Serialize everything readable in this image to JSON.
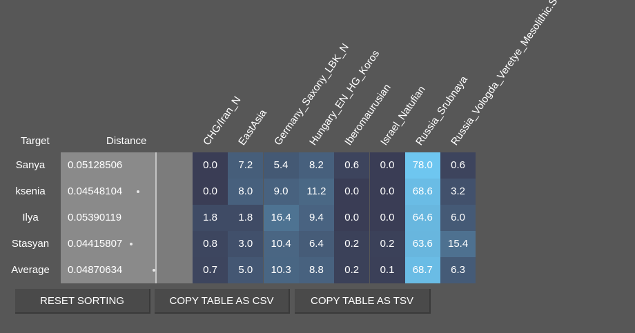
{
  "headers": {
    "target": "Target",
    "distance": "Distance"
  },
  "columns": [
    "CHG/Iran_N",
    "EastAsia",
    "Germany_Saxony_LBK_N",
    "Hungary_EN_HG_Koros",
    "Iberomaurusian",
    "Israel_Natufian",
    "Russia_Srubnaya",
    "Russia_Vologda_Veretye_Mesolithic.SG"
  ],
  "rows": [
    {
      "target": "Sanya",
      "distance": "0.05128506",
      "distance_value": 0.05128506,
      "values": [
        "0.0",
        "7.2",
        "5.4",
        "8.2",
        "0.6",
        "0.0",
        "78.0",
        "0.6"
      ]
    },
    {
      "target": "ksenia",
      "distance": "0.04548104",
      "distance_value": 0.04548104,
      "values": [
        "0.0",
        "8.0",
        "9.0",
        "11.2",
        "0.0",
        "0.0",
        "68.6",
        "3.2"
      ]
    },
    {
      "target": "Ilya",
      "distance": "0.05390119",
      "distance_value": 0.05390119,
      "values": [
        "1.8",
        "1.8",
        "16.4",
        "9.4",
        "0.0",
        "0.0",
        "64.6",
        "6.0"
      ]
    },
    {
      "target": "Stasyan",
      "distance": "0.04415807",
      "distance_value": 0.04415807,
      "values": [
        "0.8",
        "3.0",
        "10.4",
        "6.4",
        "0.2",
        "0.2",
        "63.6",
        "15.4"
      ]
    },
    {
      "target": "Average",
      "distance": "0.04870634",
      "distance_value": 0.04870634,
      "values": [
        "0.7",
        "5.0",
        "10.3",
        "8.8",
        "0.2",
        "0.1",
        "68.7",
        "6.3"
      ]
    }
  ],
  "buttons": {
    "reset": "RESET SORTING",
    "csv": "COPY TABLE AS CSV",
    "tsv": "COPY TABLE AS TSV"
  },
  "colors": {
    "background": "#575757",
    "distance_cell": "#8a8a8a",
    "button": "#4a4a4a",
    "heat_low": "#3a3d55",
    "heat_high": "#6ec6f0"
  }
}
